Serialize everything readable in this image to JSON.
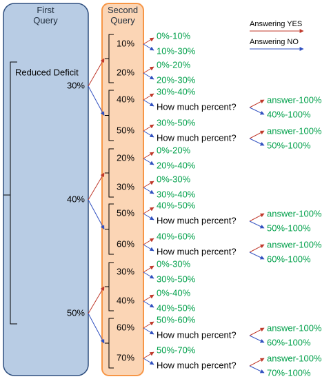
{
  "first_query": {
    "title": "First Query",
    "label": "Reduced Deficit"
  },
  "second_query": {
    "title": "Second Query"
  },
  "legend": {
    "yes": "Answering YES",
    "no": "Answering NO"
  },
  "levels": [
    {
      "value": "30%",
      "options": [
        {
          "value": "10%",
          "yes": "0%-10%",
          "no": "10%-30%"
        },
        {
          "value": "20%",
          "yes": "0%-20%",
          "no": "20%-30%"
        },
        {
          "value": "40%",
          "yes": "30%-40%",
          "no": "How much percent?",
          "followup": {
            "yes": "answer-100%",
            "no": "40%-100%"
          }
        },
        {
          "value": "50%",
          "yes": "30%-50%",
          "no": "How much percent?",
          "followup": {
            "yes": "answer-100%",
            "no": "50%-100%"
          }
        }
      ]
    },
    {
      "value": "40%",
      "options": [
        {
          "value": "20%",
          "yes": "0%-20%",
          "no": "20%-40%"
        },
        {
          "value": "30%",
          "yes": "0%-30%",
          "no": "30%-40%"
        },
        {
          "value": "50%",
          "yes": "40%-50%",
          "no": "How much percent?",
          "followup": {
            "yes": "answer-100%",
            "no": "50%-100%"
          }
        },
        {
          "value": "60%",
          "yes": "40%-60%",
          "no": "How much percent?",
          "followup": {
            "yes": "answer-100%",
            "no": "60%-100%"
          }
        }
      ]
    },
    {
      "value": "50%",
      "options": [
        {
          "value": "30%",
          "yes": "0%-30%",
          "no": "30%-50%"
        },
        {
          "value": "40%",
          "yes": "0%-40%",
          "no": "40%-50%"
        },
        {
          "value": "60%",
          "yes": "50%-60%",
          "no": "How much percent?",
          "followup": {
            "yes": "answer-100%",
            "no": "60%-100%"
          }
        },
        {
          "value": "70%",
          "yes": "50%-70%",
          "no": "How much percent?",
          "followup": {
            "yes": "answer-100%",
            "no": "70%-100%"
          }
        }
      ]
    }
  ]
}
